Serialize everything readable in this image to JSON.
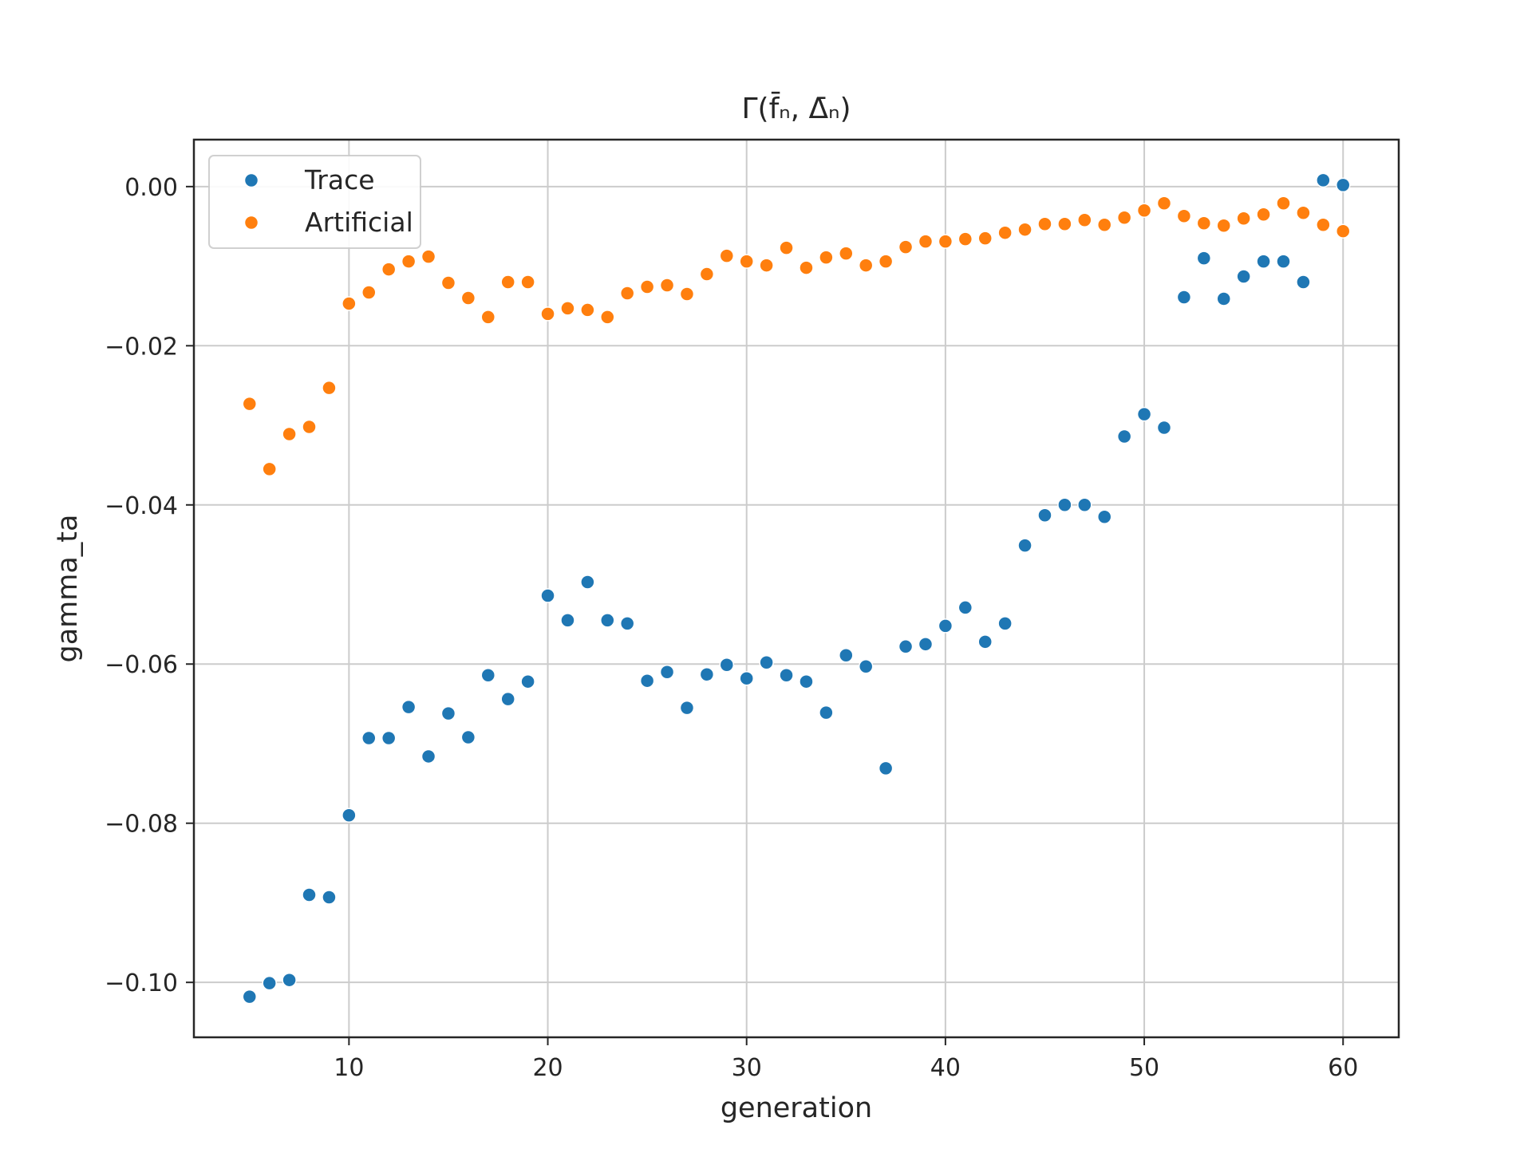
{
  "chart_data": {
    "type": "scatter",
    "title": "Γ(f̄ₙ, Δ̄ₙ)",
    "xlabel": "generation",
    "ylabel": "gamma_ta",
    "xlim": [
      2.2,
      62.8
    ],
    "ylim": [
      -0.1069,
      0.0059
    ],
    "xticks": [
      10,
      20,
      30,
      40,
      50,
      60
    ],
    "yticks": [
      0.0,
      -0.02,
      -0.04,
      -0.06,
      -0.08,
      -0.1
    ],
    "xtick_labels": [
      "10",
      "20",
      "30",
      "40",
      "50",
      "60"
    ],
    "ytick_labels": [
      "0.00",
      "−0.02",
      "−0.04",
      "−0.06",
      "−0.08",
      "−0.10"
    ],
    "grid": true,
    "legend_position": "top-left",
    "x": [
      5,
      6,
      7,
      8,
      9,
      10,
      11,
      12,
      13,
      14,
      15,
      16,
      17,
      18,
      19,
      20,
      21,
      22,
      23,
      24,
      25,
      26,
      27,
      28,
      29,
      30,
      31,
      32,
      33,
      34,
      35,
      36,
      37,
      38,
      39,
      40,
      41,
      42,
      43,
      44,
      45,
      46,
      47,
      48,
      49,
      50,
      51,
      52,
      53,
      54,
      55,
      56,
      57,
      58,
      59,
      60
    ],
    "series": [
      {
        "name": "Trace",
        "color": "#1f77b4",
        "values": [
          -0.1018,
          -0.1001,
          -0.0997,
          -0.089,
          -0.0893,
          -0.079,
          -0.0693,
          -0.0693,
          -0.0654,
          -0.0716,
          -0.0662,
          -0.0692,
          -0.0614,
          -0.0644,
          -0.0622,
          -0.0514,
          -0.0545,
          -0.0497,
          -0.0545,
          -0.0549,
          -0.0621,
          -0.061,
          -0.0655,
          -0.0613,
          -0.0601,
          -0.0618,
          -0.0598,
          -0.0614,
          -0.0622,
          -0.0661,
          -0.0589,
          -0.0603,
          -0.0731,
          -0.0578,
          -0.0575,
          -0.0552,
          -0.0529,
          -0.0572,
          -0.0549,
          -0.0451,
          -0.0413,
          -0.04,
          -0.04,
          -0.0415,
          -0.0314,
          -0.0286,
          -0.0303,
          -0.0139,
          -0.009,
          -0.0141,
          -0.0113,
          -0.0094,
          -0.0094,
          -0.012,
          0.0008,
          0.0002
        ]
      },
      {
        "name": "Artificial",
        "color": "#ff7f0e",
        "values": [
          -0.0273,
          -0.0355,
          -0.0311,
          -0.0302,
          -0.0253,
          -0.0147,
          -0.0133,
          -0.0104,
          -0.0094,
          -0.0088,
          -0.0121,
          -0.014,
          -0.0164,
          -0.012,
          -0.012,
          -0.016,
          -0.0153,
          -0.0155,
          -0.0164,
          -0.0134,
          -0.0126,
          -0.0124,
          -0.0135,
          -0.011,
          -0.0087,
          -0.0094,
          -0.0099,
          -0.0077,
          -0.0102,
          -0.0089,
          -0.0084,
          -0.0099,
          -0.0094,
          -0.0076,
          -0.0069,
          -0.0069,
          -0.0066,
          -0.0065,
          -0.0058,
          -0.0054,
          -0.0047,
          -0.0047,
          -0.0042,
          -0.0048,
          -0.0039,
          -0.003,
          -0.0021,
          -0.0037,
          -0.0046,
          -0.0049,
          -0.004,
          -0.0035,
          -0.0021,
          -0.0033,
          -0.0048,
          -0.0056
        ]
      }
    ]
  }
}
